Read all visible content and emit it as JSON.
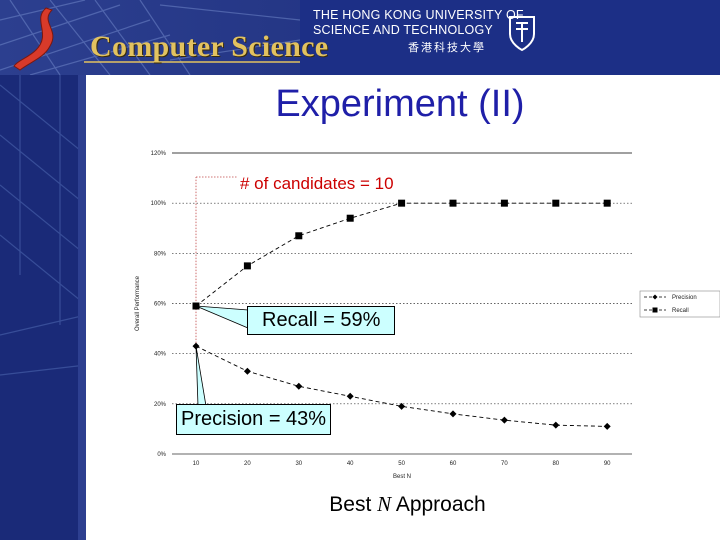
{
  "header": {
    "dept_title": "Computer Science",
    "university_line1": "THE HONG KONG UNIVERSITY OF",
    "university_line2": "SCIENCE AND TECHNOLOGY",
    "university_chinese": "香港科技大學"
  },
  "slide": {
    "title": "Experiment (II)",
    "caption_pre": "Best ",
    "caption_n": "N",
    "caption_post": " Approach"
  },
  "annotations": {
    "candidates": "# of candidates = 10",
    "recall": "Recall = 59%",
    "precision": "Precision = 43%"
  },
  "colors": {
    "banner": "#1a2a78",
    "title": "#1f1fa8",
    "annotation_box": "#ccffff",
    "candidates_text": "#cc0000"
  },
  "chart_data": {
    "type": "line",
    "ylabel": "Overall Performance",
    "xlabel": "Best N",
    "x": [
      10,
      20,
      30,
      40,
      50,
      60,
      70,
      80,
      90
    ],
    "x_tick_labels": [
      "10",
      "20",
      "30",
      "40",
      "50",
      "60",
      "70",
      "80",
      "90"
    ],
    "y_tick_labels": [
      "0%",
      "20%",
      "40%",
      "60%",
      "80%",
      "100%",
      "120%"
    ],
    "ylim": [
      0,
      120
    ],
    "grid": "horizontal dotted",
    "legend_position": "right",
    "series": [
      {
        "name": "Precision",
        "marker": "diamond",
        "values": [
          43,
          33,
          27,
          23,
          19,
          16,
          13.5,
          11.5,
          11
        ]
      },
      {
        "name": "Recall",
        "marker": "square",
        "values": [
          59,
          75,
          87,
          94,
          100,
          100,
          100,
          100,
          100
        ]
      }
    ]
  }
}
